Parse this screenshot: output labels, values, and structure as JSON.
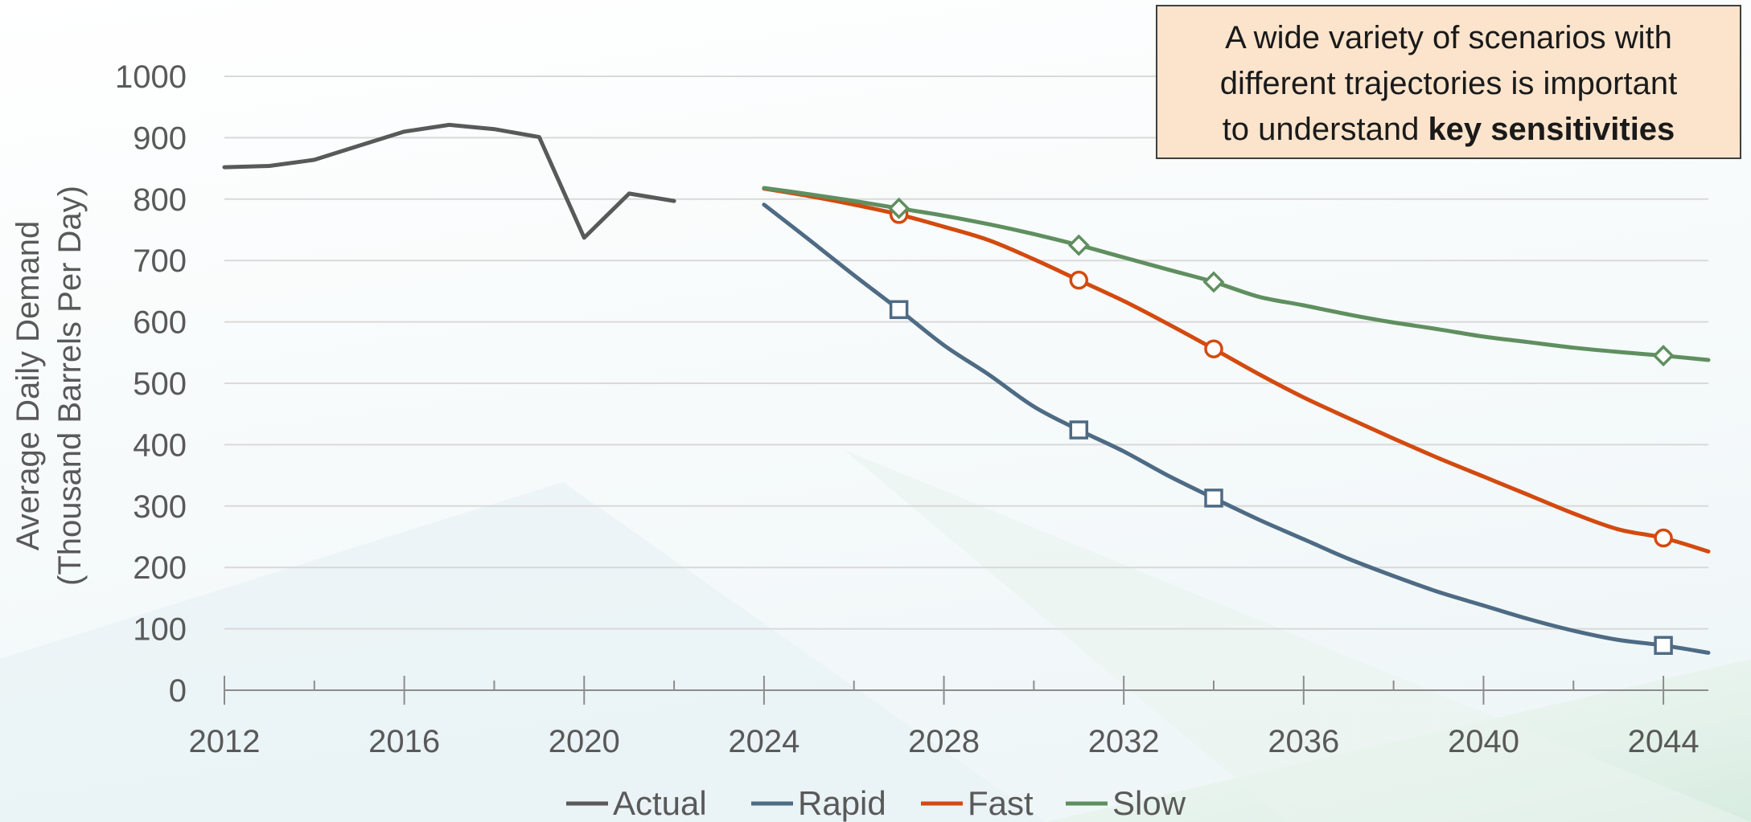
{
  "callout": {
    "line1": "A wide variety of scenarios with",
    "line2": "different trajectories is important",
    "line3_prefix": "to understand ",
    "line3_bold": "key sensitivities"
  },
  "colors": {
    "actual": "#595959",
    "rapid": "#4e6b85",
    "fast": "#d34a0f",
    "slow": "#5f8f5f",
    "gridline": "#d9d9d9",
    "axis": "#8c8c8c",
    "callout_bg": "#fce4cc"
  },
  "chart_data": {
    "type": "line",
    "title": "",
    "ylabel_line1": "Average Daily Demand",
    "ylabel_line2": "(Thousand Barrels Per Day)",
    "xlabel": "",
    "xlim": [
      2012,
      2045
    ],
    "ylim": [
      0,
      1000
    ],
    "x_tick_labels": [
      "2012",
      "2016",
      "2020",
      "2024",
      "2028",
      "2032",
      "2036",
      "2040",
      "2044"
    ],
    "x_tick_values": [
      2012,
      2016,
      2020,
      2024,
      2028,
      2032,
      2036,
      2040,
      2044
    ],
    "y_tick_labels": [
      "0",
      "100",
      "200",
      "300",
      "400",
      "500",
      "600",
      "700",
      "800",
      "900",
      "1000"
    ],
    "y_tick_values": [
      0,
      100,
      200,
      300,
      400,
      500,
      600,
      700,
      800,
      900,
      1000
    ],
    "grid": true,
    "legend_position": "bottom",
    "series": [
      {
        "name": "Actual",
        "marker": "none",
        "x": [
          2012,
          2013,
          2014,
          2015,
          2016,
          2017,
          2018,
          2019,
          2020,
          2021,
          2022
        ],
        "y": [
          852,
          854,
          864,
          887,
          910,
          921,
          914,
          901,
          737,
          809,
          797
        ]
      },
      {
        "name": "Rapid",
        "marker": "square",
        "x": [
          2024,
          2025,
          2026,
          2027,
          2028,
          2029,
          2030,
          2031,
          2032,
          2033,
          2034,
          2035,
          2036,
          2037,
          2038,
          2039,
          2040,
          2041,
          2042,
          2043,
          2044,
          2045
        ],
        "y": [
          791,
          734,
          676,
          620,
          562,
          514,
          462,
          424,
          389,
          349,
          313,
          278,
          246,
          214,
          186,
          160,
          138,
          116,
          97,
          82,
          73,
          61
        ]
      },
      {
        "name": "Fast",
        "marker": "circle",
        "x": [
          2024,
          2025,
          2026,
          2027,
          2028,
          2029,
          2030,
          2031,
          2032,
          2033,
          2034,
          2035,
          2036,
          2037,
          2038,
          2039,
          2040,
          2041,
          2042,
          2043,
          2044,
          2045
        ],
        "y": [
          817,
          805,
          791,
          775,
          755,
          733,
          702,
          668,
          634,
          596,
          556,
          515,
          477,
          443,
          410,
          378,
          348,
          318,
          288,
          262,
          248,
          226
        ],
        "marker_x": [
          2027,
          2031,
          2034,
          2044
        ]
      },
      {
        "name": "Slow",
        "marker": "diamond",
        "x": [
          2024,
          2025,
          2026,
          2027,
          2028,
          2029,
          2030,
          2031,
          2032,
          2033,
          2034,
          2035,
          2036,
          2037,
          2038,
          2039,
          2040,
          2041,
          2042,
          2043,
          2044,
          2045
        ],
        "y": [
          818,
          808,
          797,
          785,
          773,
          759,
          743,
          725,
          705,
          685,
          665,
          641,
          627,
          612,
          599,
          588,
          576,
          567,
          558,
          551,
          545,
          538
        ],
        "marker_x": [
          2027,
          2031,
          2034,
          2044
        ]
      }
    ]
  }
}
